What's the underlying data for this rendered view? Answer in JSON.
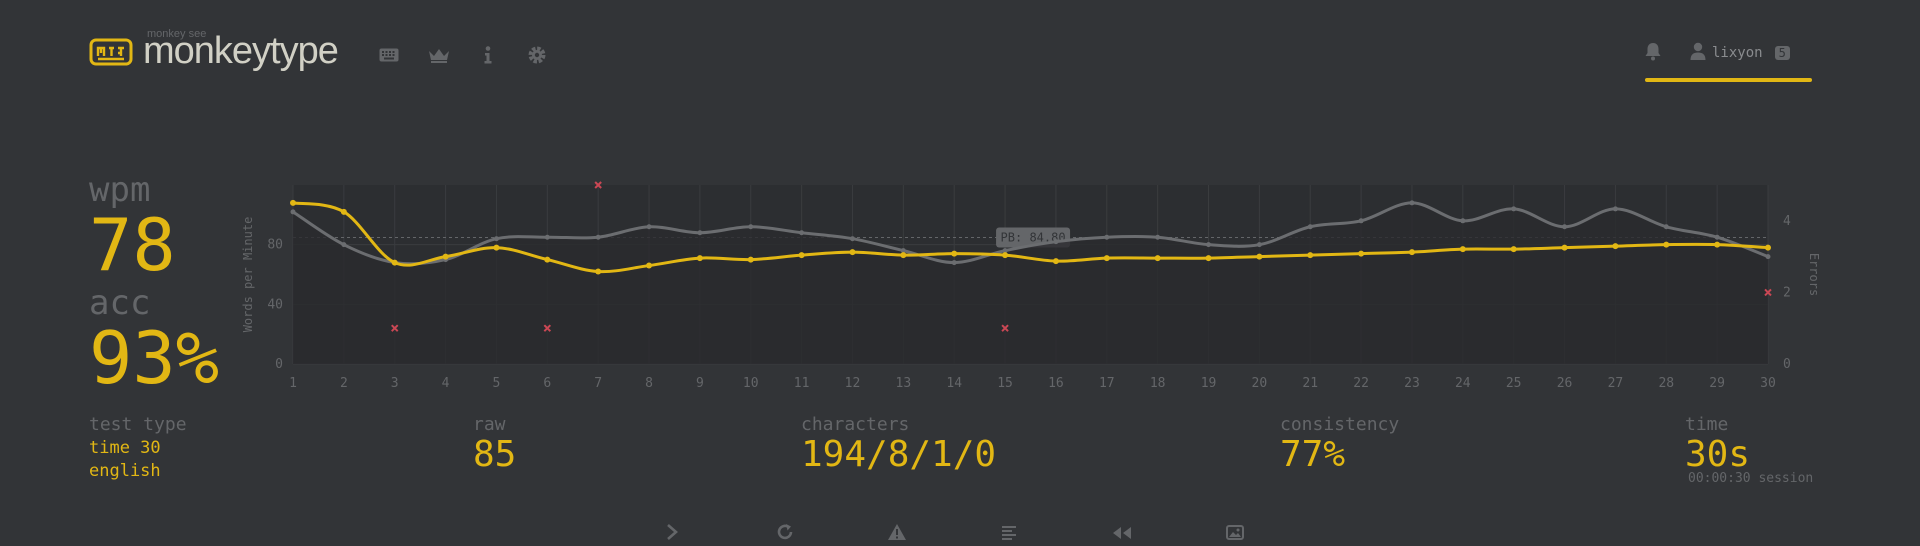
{
  "header": {
    "logo_sub": "monkey see",
    "logo_text": "monkeytype",
    "nav": [
      {
        "icon": "keyboard-icon"
      },
      {
        "icon": "crown-icon"
      },
      {
        "icon": "info-icon"
      },
      {
        "icon": "gear-icon"
      }
    ],
    "user": {
      "name": "lixyon",
      "level": "5"
    }
  },
  "stats": {
    "wpm_label": "wpm",
    "wpm": "78",
    "acc_label": "acc",
    "acc": "93%"
  },
  "bottom": {
    "test_type_label": "test type",
    "test_type_line1": "time 30",
    "test_type_line2": "english",
    "raw_label": "raw",
    "raw": "85",
    "characters_label": "characters",
    "characters": "194/8/1/0",
    "consistency_label": "consistency",
    "consistency": "77%",
    "time_label": "time",
    "time": "30s",
    "session": "00:00:30 session"
  },
  "buttons": [
    {
      "icon": "next-icon"
    },
    {
      "icon": "restart-icon"
    },
    {
      "icon": "warning-icon"
    },
    {
      "icon": "words-history-icon"
    },
    {
      "icon": "replay-icon"
    },
    {
      "icon": "screenshot-icon"
    }
  ],
  "colors": {
    "accent": "#e2b714",
    "bg": "#323437",
    "sub": "#646669",
    "error": "#ca4754",
    "raw": "#6b6d70"
  },
  "chart_data": {
    "type": "line",
    "x": [
      1,
      2,
      3,
      4,
      5,
      6,
      7,
      8,
      9,
      10,
      11,
      12,
      13,
      14,
      15,
      16,
      17,
      18,
      19,
      20,
      21,
      22,
      23,
      24,
      25,
      26,
      27,
      28,
      29,
      30
    ],
    "xlim": [
      1,
      30
    ],
    "ylim": [
      0,
      120
    ],
    "y_ticks": [
      0,
      40,
      80
    ],
    "ylabel": "Words per Minute",
    "y2label": "Errors",
    "y2lim": [
      0,
      5
    ],
    "y2_ticks": [
      0,
      2,
      4
    ],
    "pb_label": "PB: 84.80",
    "pb_value": 84.8,
    "series": [
      {
        "role": "wpm",
        "values": [
          108,
          102,
          68,
          72,
          78,
          70,
          62,
          66,
          71,
          70,
          73,
          75,
          73,
          74,
          73,
          69,
          71,
          71,
          71,
          72,
          73,
          74,
          75,
          77,
          77,
          78,
          79,
          80,
          80,
          78
        ]
      },
      {
        "role": "raw",
        "values": [
          102,
          80,
          68,
          70,
          84,
          85,
          85,
          92,
          88,
          92,
          88,
          84,
          76,
          68,
          76,
          82,
          85,
          85,
          80,
          80,
          92,
          96,
          108,
          96,
          104,
          92,
          104,
          92,
          85,
          72
        ]
      }
    ],
    "errors": [
      {
        "x": 3,
        "y": 1
      },
      {
        "x": 6,
        "y": 1
      },
      {
        "x": 7,
        "y": 5
      },
      {
        "x": 15,
        "y": 1
      },
      {
        "x": 30,
        "y": 2
      }
    ]
  }
}
